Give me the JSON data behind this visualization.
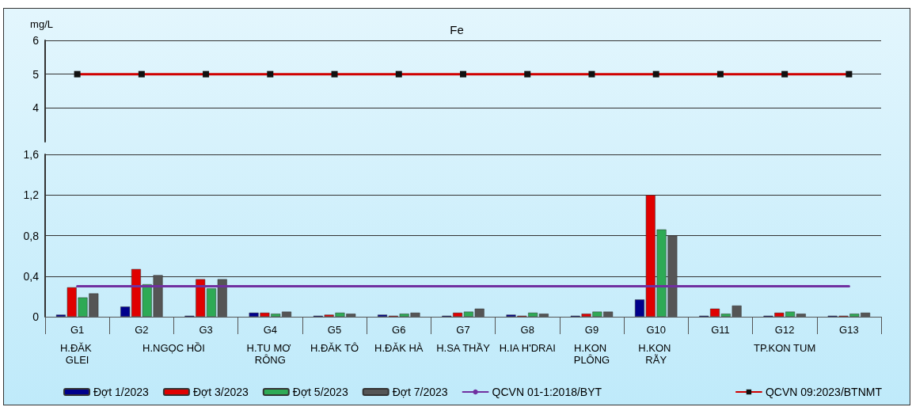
{
  "chart_data": [
    {
      "type": "line",
      "title": "Fe",
      "ylabel": "mg/L",
      "categories": [
        null,
        null,
        null,
        null,
        null,
        null,
        null,
        null,
        null,
        null,
        null,
        null,
        null
      ],
      "ylim": [
        3,
        6
      ],
      "yticks": [
        4,
        5,
        6
      ],
      "grid": "y",
      "legend": "bottom",
      "tick_labels": "y",
      "series": [
        {
          "name": "QCVN 09:2023/BTNMT",
          "color": "#d00000",
          "marker": "square",
          "values": [
            5,
            5,
            5,
            5,
            5,
            5,
            5,
            5,
            5,
            5,
            5,
            5,
            5
          ]
        }
      ]
    },
    {
      "type": "bar",
      "categories": [
        "G1",
        "G2",
        "G3",
        "G4",
        "G5",
        "G6",
        "G7",
        "G8",
        "G9",
        "G10",
        "G11",
        "G12",
        "G13"
      ],
      "ylim": [
        0,
        1.6
      ],
      "yticks": [
        {
          "value": 0,
          "label": "0"
        },
        {
          "value": 0.4,
          "label": "0,4"
        },
        {
          "value": 0.8,
          "label": "0,8"
        },
        {
          "value": 1.2,
          "label": "1,2"
        },
        {
          "value": 1.6,
          "label": "1,6"
        }
      ],
      "grid": "y",
      "legend": "bottom",
      "annotations": [
        "H.ĐĂK GLEI",
        "H.NGỌC HỒI",
        "H.TU MƠ RÔNG",
        "H.ĐĂK TÔ",
        "H.ĐĂK HÀ",
        "H.SA THẦY",
        "H.IA H'DRAI",
        "H.KON PLÔNG",
        "H.KON RẪY",
        "TP.KON TUM"
      ],
      "series": [
        {
          "name": "Đợt 1/2023",
          "color": "#00008b",
          "values": [
            0.02,
            0.1,
            0.01,
            0.04,
            0.01,
            0.02,
            0.01,
            0.02,
            0.01,
            0.17,
            0.01,
            0.01,
            0.01
          ]
        },
        {
          "name": "Đợt 3/2023",
          "color": "#e00000",
          "values": [
            0.29,
            0.47,
            0.37,
            0.04,
            0.02,
            0.01,
            0.04,
            0.01,
            0.03,
            1.2,
            0.08,
            0.04,
            0.01
          ]
        },
        {
          "name": "Đợt 5/2023",
          "color": "#2eaa55",
          "values": [
            0.19,
            0.32,
            0.28,
            0.03,
            0.04,
            0.03,
            0.05,
            0.04,
            0.05,
            0.86,
            0.03,
            0.05,
            0.03
          ]
        },
        {
          "name": "Đợt 7/2023",
          "color": "#555555",
          "values": [
            0.23,
            0.41,
            0.37,
            0.05,
            0.03,
            0.04,
            0.08,
            0.03,
            0.05,
            0.8,
            0.11,
            0.03,
            0.04
          ]
        },
        {
          "name": "QCVN 01-1:2018/BYT",
          "type": "line",
          "color": "#7030a0",
          "marker": "none",
          "values": [
            0.3,
            0.3,
            0.3,
            0.3,
            0.3,
            0.3,
            0.3,
            0.3,
            0.3,
            0.3,
            0.3,
            0.3,
            0.3
          ]
        }
      ]
    }
  ]
}
